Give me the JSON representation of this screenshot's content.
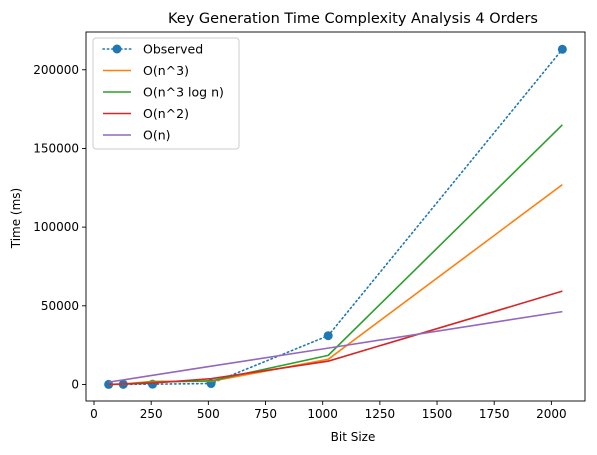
{
  "chart_data": {
    "type": "line",
    "title": "Key Generation Time Complexity Analysis 4 Orders",
    "xlabel": "Bit Size",
    "ylabel": "Time (ms)",
    "x": [
      64,
      128,
      256,
      512,
      1024,
      2048
    ],
    "xlim": [
      -35,
      2147
    ],
    "ylim": [
      -10500,
      224000
    ],
    "xticks": [
      0,
      250,
      500,
      750,
      1000,
      1250,
      1500,
      1750,
      2000
    ],
    "yticks": [
      0,
      50000,
      100000,
      150000,
      200000
    ],
    "grid": false,
    "legend_position": "upper-left",
    "series": [
      {
        "name": "Observed",
        "color": "#1f77b4",
        "style": "dotted",
        "marker": "circle",
        "values": [
          50,
          100,
          200,
          600,
          31000,
          213000
        ]
      },
      {
        "name": "O(n^3)",
        "color": "#ff7f0e",
        "style": "solid",
        "marker": "none",
        "values": [
          0,
          250,
          2000,
          2000,
          16000,
          127000
        ]
      },
      {
        "name": "O(n^3 log n)",
        "color": "#2ca02c",
        "style": "solid",
        "marker": "none",
        "values": [
          0,
          300,
          1500,
          2300,
          18500,
          165000
        ]
      },
      {
        "name": "O(n^2)",
        "color": "#d62728",
        "style": "solid",
        "marker": "none",
        "values": [
          0,
          300,
          900,
          3700,
          14800,
          59300
        ]
      },
      {
        "name": "O(n)",
        "color": "#9467bd",
        "style": "solid",
        "marker": "none",
        "values": [
          1500,
          2900,
          5800,
          11600,
          23100,
          46300
        ]
      }
    ]
  }
}
